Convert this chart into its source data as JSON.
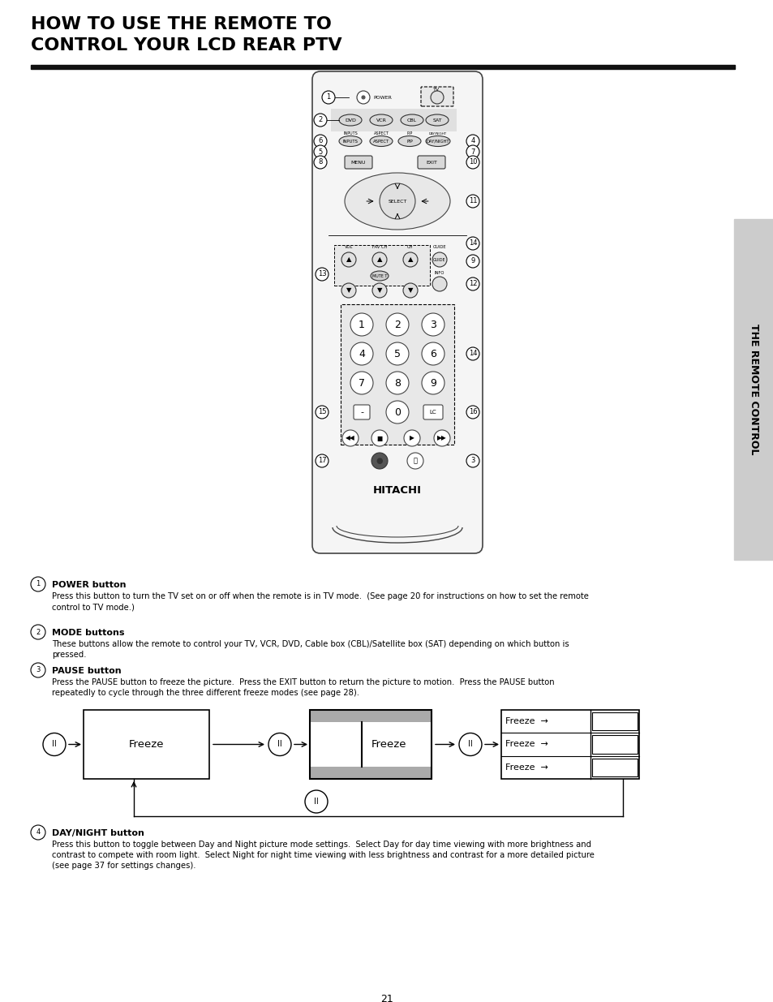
{
  "title_line1": "HOW TO USE THE REMOTE TO",
  "title_line2": "CONTROL YOUR LCD REAR PTV",
  "page_num": "21",
  "sidebar_text": "THE REMOTE CONTROL",
  "section1_bold": "POWER button",
  "section1_text": "Press this button to turn the TV set on or off when the remote is in TV mode.  (See page 20 for instructions on how to set the remote\ncontrol to TV mode.)",
  "section2_bold": "MODE buttons",
  "section2_text": "These buttons allow the remote to control your TV, VCR, DVD, Cable box (CBL)/Satellite box (SAT) depending on which button is\npressed.",
  "section3_bold": "PAUSE button",
  "section3_text": "Press the PAUSE button to freeze the picture.  Press the EXIT button to return the picture to motion.  Press the PAUSE button\nrepeatedly to cycle through the three different freeze modes (see page 28).",
  "section4_bold": "DAY/NIGHT button",
  "section4_text": "Press this button to toggle between Day and Night picture mode settings.  Select Day for day time viewing with more brightness and\ncontrast to compete with room light.  Select Night for night time viewing with less brightness and contrast for a more detailed picture\n(see page 37 for settings changes).",
  "bg_color": "#ffffff",
  "text_color": "#000000",
  "title_color": "#000000",
  "sidebar_bg": "#cccccc"
}
